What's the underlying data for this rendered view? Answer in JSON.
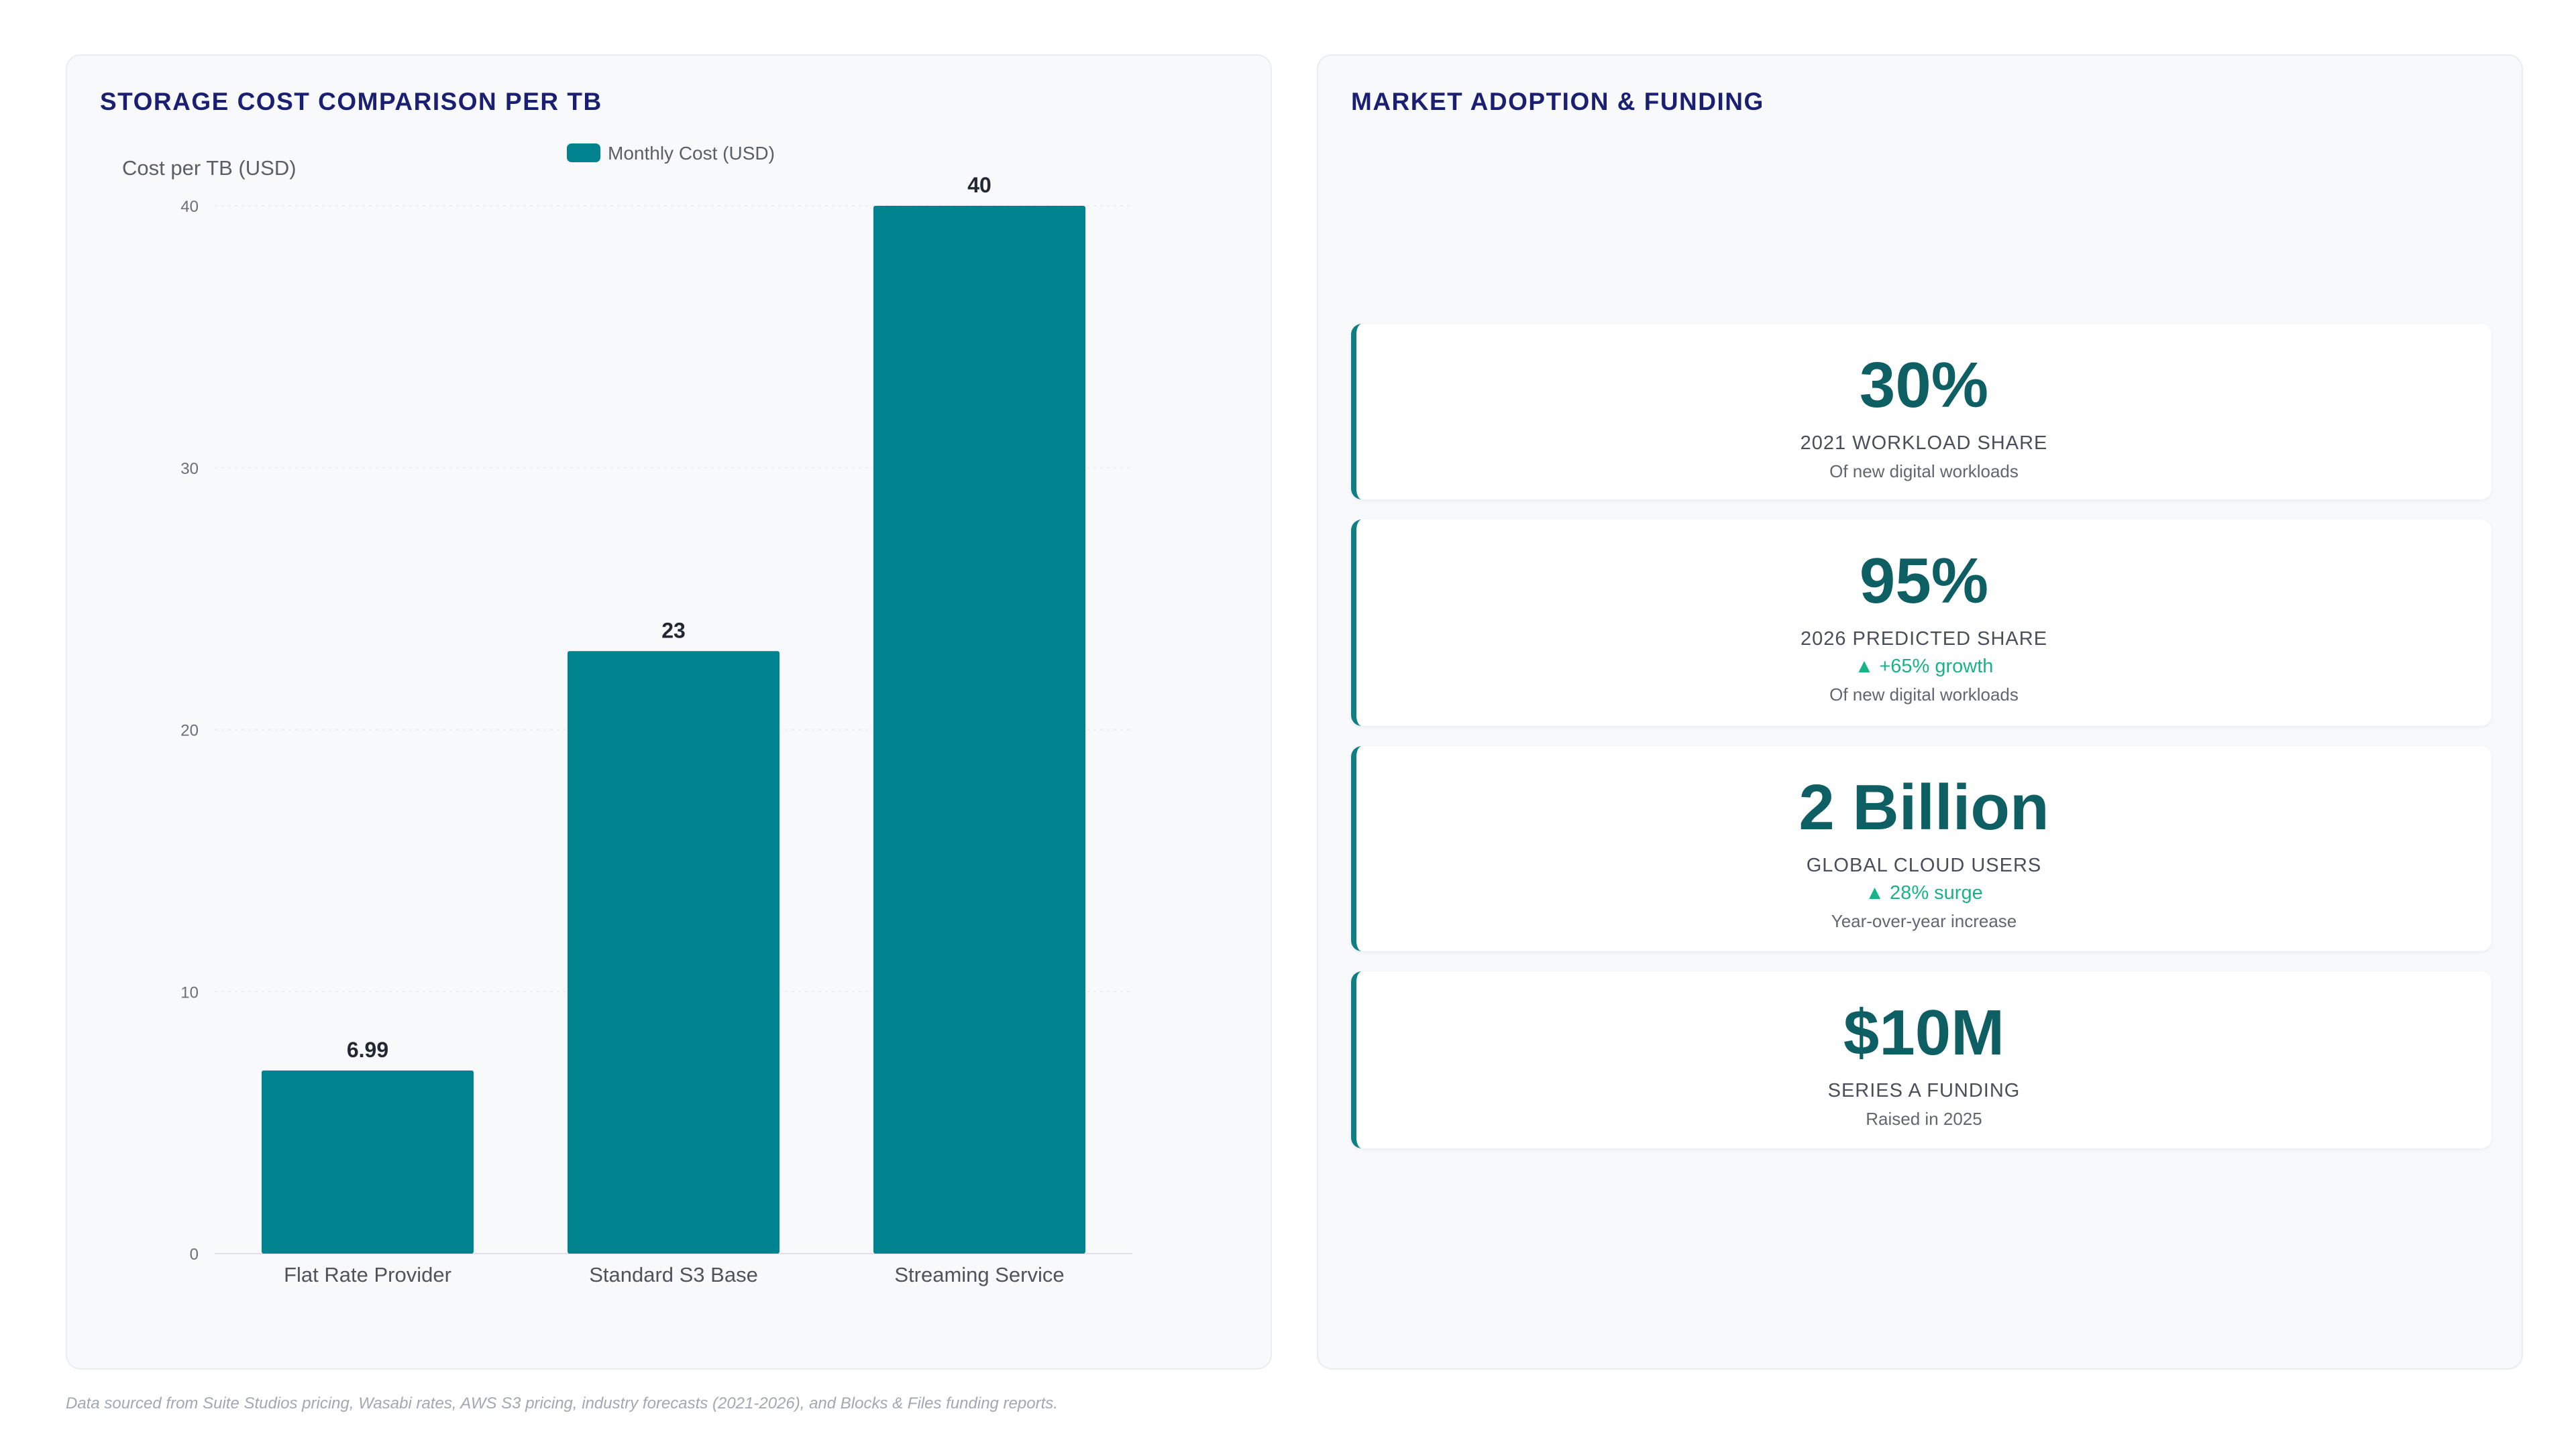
{
  "cost_panel": {
    "title": "STORAGE COST COMPARISON PER TB"
  },
  "adoption_panel": {
    "title": "MARKET ADOPTION & FUNDING",
    "stats": [
      {
        "value": "30%",
        "label": "2021 WORKLOAD SHARE",
        "trend": "",
        "sub": "Of new digital workloads"
      },
      {
        "value": "95%",
        "label": "2026 PREDICTED SHARE",
        "trend": "▲ +65% growth",
        "sub": "Of new digital workloads"
      },
      {
        "value": "2 Billion",
        "label": "GLOBAL CLOUD USERS",
        "trend": "▲ 28% surge",
        "sub": "Year-over-year increase"
      },
      {
        "value": "$10M",
        "label": "SERIES A FUNDING",
        "trend": "",
        "sub": "Raised in 2025"
      }
    ]
  },
  "footnote": "Data sourced from Suite Studios pricing, Wasabi rates, AWS S3 pricing, industry forecasts (2021-2026), and Blocks & Files funding reports.",
  "chart_data": {
    "type": "bar",
    "categories": [
      "Flat Rate Provider",
      "Standard S3 Base",
      "Streaming Service"
    ],
    "series": [
      {
        "name": "Monthly Cost (USD)",
        "values": [
          6.99,
          23,
          40
        ]
      }
    ],
    "value_labels": [
      "6.99",
      "23",
      "40"
    ],
    "ylabel": "Cost per TB (USD)",
    "xlabel": "",
    "ylim": [
      0,
      40
    ],
    "yticks": [
      0,
      10,
      20,
      30,
      40
    ],
    "grid": true,
    "legend": "top-center",
    "bar_color": "#00838f"
  }
}
